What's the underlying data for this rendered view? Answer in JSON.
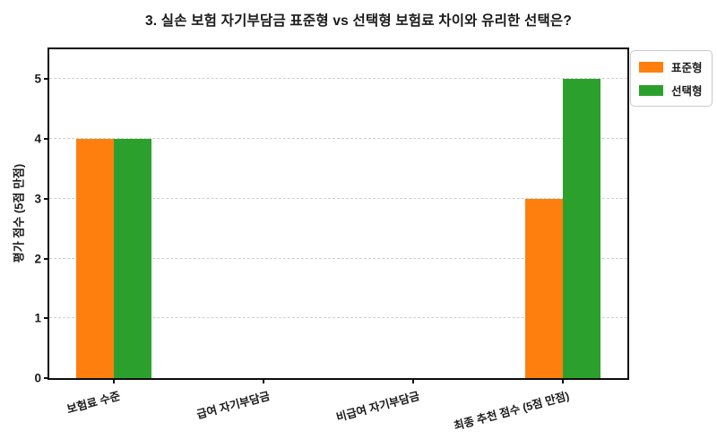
{
  "title": "3. 실손 보험 자기부담금 표준형 vs 선택형 보험료 차이와 유리한 선택은?",
  "chart_data": {
    "type": "bar",
    "title": "3. 실손 보험 자기부담금 표준형 vs 선택형 보험료 차이와 유리한 선택은?",
    "categories": [
      "보험료 수준",
      "급여 자기부담금",
      "비급여 자기부담금",
      "최종 추천 점수  (5점 만점)"
    ],
    "series": [
      {
        "name": "표준형",
        "color": "#ff7f0e",
        "values": [
          4,
          0,
          0,
          3
        ]
      },
      {
        "name": "선택형",
        "color": "#2ca02c",
        "values": [
          4,
          0,
          0,
          5
        ]
      }
    ],
    "xlabel": "",
    "ylabel": "평가 점수 (5점 만점)",
    "yticks": [
      0,
      1,
      2,
      3,
      4,
      5
    ],
    "ylim": [
      0,
      5.5
    ],
    "grid": "horizontal-dashed",
    "gridline_color": "#cfcfcf",
    "spine_color": "#0d0d0d",
    "legend_position": "top-right-outside",
    "xtick_rotation_deg": 15
  }
}
